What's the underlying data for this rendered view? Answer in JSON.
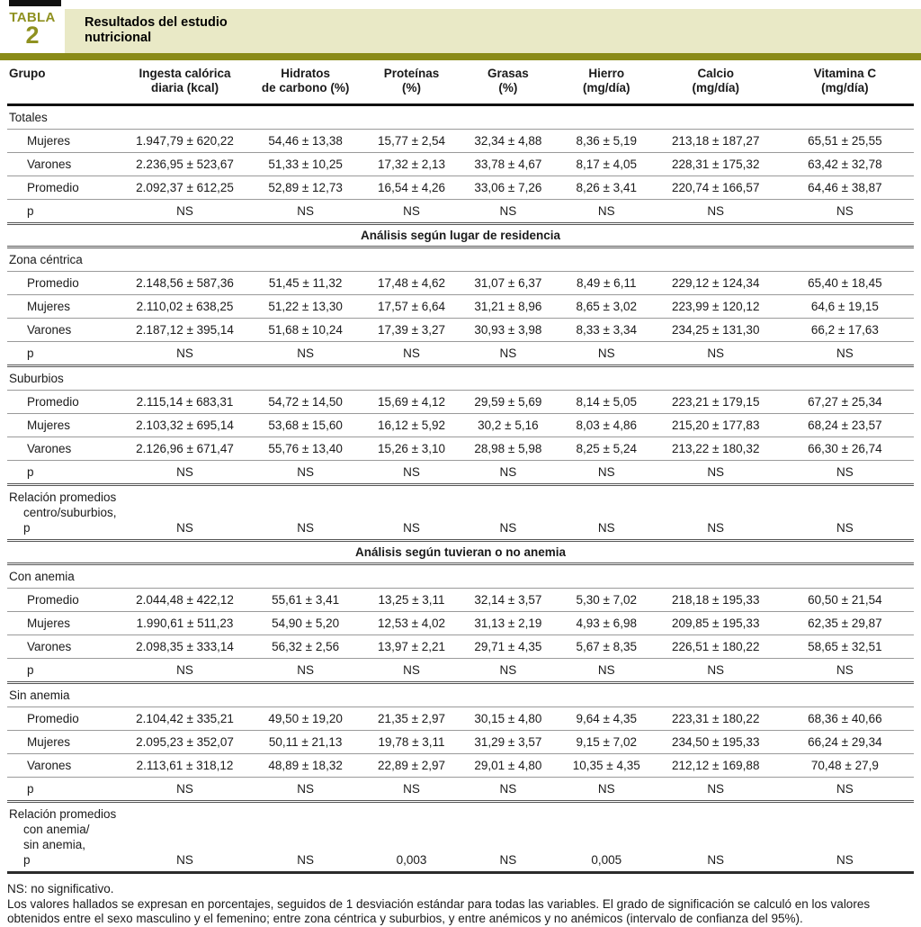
{
  "colors": {
    "olive": "#8a8b18",
    "olive-text": "#8f9120",
    "khaki": "#e9e9c6"
  },
  "header": {
    "tabla_label": "TABLA",
    "tabla_number": "2",
    "title_line1": "Resultados del estudio",
    "title_line2": "nutricional"
  },
  "table": {
    "columns": [
      {
        "lines": [
          "Grupo"
        ]
      },
      {
        "lines": [
          "Ingesta calórica",
          "diaria (kcal)"
        ]
      },
      {
        "lines": [
          "Hidratos",
          "de carbono (%)"
        ]
      },
      {
        "lines": [
          "Proteínas",
          "(%)"
        ]
      },
      {
        "lines": [
          "Grasas",
          "(%)"
        ]
      },
      {
        "lines": [
          "Hierro",
          "(mg/día)"
        ]
      },
      {
        "lines": [
          "Calcio",
          "(mg/día)"
        ]
      },
      {
        "lines": [
          "Vitamina C",
          "(mg/día)"
        ]
      }
    ],
    "rows": [
      {
        "type": "section",
        "label": "Totales"
      },
      {
        "type": "data",
        "label": "Mujeres",
        "values": [
          "1.947,79 ± 620,22",
          "54,46 ± 13,38",
          "15,77 ± 2,54",
          "32,34 ± 4,88",
          "8,36 ± 5,19",
          "213,18 ± 187,27",
          "65,51 ± 25,55"
        ]
      },
      {
        "type": "data",
        "label": "Varones",
        "values": [
          "2.236,95 ± 523,67",
          "51,33 ± 10,25",
          "17,32 ± 2,13",
          "33,78 ± 4,67",
          "8,17 ± 4,05",
          "228,31 ± 175,32",
          "63,42 ± 32,78"
        ]
      },
      {
        "type": "data",
        "label": "Promedio",
        "values": [
          "2.092,37 ± 612,25",
          "52,89 ± 12,73",
          "16,54 ± 4,26",
          "33,06 ± 7,26",
          "8,26 ± 3,41",
          "220,74 ± 166,57",
          "64,46 ± 38,87"
        ]
      },
      {
        "type": "data",
        "label": "p",
        "end": true,
        "values": [
          "NS",
          "NS",
          "NS",
          "NS",
          "NS",
          "NS",
          "NS"
        ]
      },
      {
        "type": "span",
        "label": "Análisis según lugar de residencia"
      },
      {
        "type": "section",
        "label": "Zona céntrica"
      },
      {
        "type": "data",
        "label": "Promedio",
        "values": [
          "2.148,56 ± 587,36",
          "51,45 ± 11,32",
          "17,48 ± 4,62",
          "31,07 ± 6,37",
          "8,49 ± 6,11",
          "229,12 ± 124,34",
          "65,40 ± 18,45"
        ]
      },
      {
        "type": "data",
        "label": "Mujeres",
        "values": [
          "2.110,02 ± 638,25",
          "51,22 ± 13,30",
          "17,57 ± 6,64",
          "31,21 ± 8,96",
          "8,65 ± 3,02",
          "223,99 ± 120,12",
          "64,6 ± 19,15"
        ]
      },
      {
        "type": "data",
        "label": "Varones",
        "values": [
          "2.187,12 ± 395,14",
          "51,68 ± 10,24",
          "17,39 ± 3,27",
          "30,93 ± 3,98",
          "8,33 ± 3,34",
          "234,25 ± 131,30",
          "66,2 ± 17,63"
        ]
      },
      {
        "type": "data",
        "label": "p",
        "end": true,
        "values": [
          "NS",
          "NS",
          "NS",
          "NS",
          "NS",
          "NS",
          "NS"
        ]
      },
      {
        "type": "section",
        "label": "Suburbios"
      },
      {
        "type": "data",
        "label": "Promedio",
        "values": [
          "2.115,14 ± 683,31",
          "54,72 ± 14,50",
          "15,69 ± 4,12",
          "29,59 ± 5,69",
          "8,14 ± 5,05",
          "223,21 ± 179,15",
          "67,27 ± 25,34"
        ]
      },
      {
        "type": "data",
        "label": "Mujeres",
        "values": [
          "2.103,32 ± 695,14",
          "53,68 ± 15,60",
          "16,12 ± 5,92",
          "30,2 ± 5,16",
          "8,03 ± 4,86",
          "215,20 ± 177,83",
          "68,24 ± 23,57"
        ]
      },
      {
        "type": "data",
        "label": "Varones",
        "values": [
          "2.126,96 ± 671,47",
          "55,76 ± 13,40",
          "15,26 ± 3,10",
          "28,98 ± 5,98",
          "8,25 ± 5,24",
          "213,22 ± 180,32",
          "66,30 ± 26,74"
        ]
      },
      {
        "type": "data",
        "label": "p",
        "end": true,
        "values": [
          "NS",
          "NS",
          "NS",
          "NS",
          "NS",
          "NS",
          "NS"
        ]
      },
      {
        "type": "multiline",
        "label_lines": [
          "Relación promedios",
          "centro/suburbios, p"
        ],
        "values": [
          "NS",
          "NS",
          "NS",
          "NS",
          "NS",
          "NS",
          "NS"
        ]
      },
      {
        "type": "span",
        "label": "Análisis según tuvieran o no anemia"
      },
      {
        "type": "section",
        "label": "Con anemia"
      },
      {
        "type": "data",
        "label": "Promedio",
        "values": [
          "2.044,48 ± 422,12",
          "55,61 ± 3,41",
          "13,25 ± 3,11",
          "32,14 ± 3,57",
          "5,30 ± 7,02",
          "218,18 ± 195,33",
          "60,50 ± 21,54"
        ]
      },
      {
        "type": "data",
        "label": "Mujeres",
        "values": [
          "1.990,61 ± 511,23",
          "54,90 ± 5,20",
          "12,53 ± 4,02",
          "31,13 ± 2,19",
          "4,93 ± 6,98",
          "209,85 ± 195,33",
          "62,35 ± 29,87"
        ]
      },
      {
        "type": "data",
        "label": "Varones",
        "values": [
          "2.098,35 ± 333,14",
          "56,32 ± 2,56",
          "13,97 ± 2,21",
          "29,71 ± 4,35",
          "5,67 ± 8,35",
          "226,51 ± 180,22",
          "58,65 ± 32,51"
        ]
      },
      {
        "type": "data",
        "label": "p",
        "end": true,
        "values": [
          "NS",
          "NS",
          "NS",
          "NS",
          "NS",
          "NS",
          "NS"
        ]
      },
      {
        "type": "section",
        "label": "Sin anemia"
      },
      {
        "type": "data",
        "label": "Promedio",
        "values": [
          "2.104,42 ± 335,21",
          "49,50 ± 19,20",
          "21,35 ± 2,97",
          "30,15 ± 4,80",
          "9,64 ± 4,35",
          "223,31 ± 180,22",
          "68,36 ± 40,66"
        ]
      },
      {
        "type": "data",
        "label": "Mujeres",
        "values": [
          "2.095,23 ± 352,07",
          "50,11 ± 21,13",
          "19,78 ± 3,11",
          "31,29 ± 3,57",
          "9,15 ± 7,02",
          "234,50 ± 195,33",
          "66,24 ± 29,34"
        ]
      },
      {
        "type": "data",
        "label": "Varones",
        "values": [
          "2.113,61 ± 318,12",
          "48,89 ± 18,32",
          "22,89 ± 2,97",
          "29,01 ± 4,80",
          "10,35 ± 4,35",
          "212,12 ± 169,88",
          "70,48 ± 27,9"
        ]
      },
      {
        "type": "data",
        "label": "p",
        "end": true,
        "values": [
          "NS",
          "NS",
          "NS",
          "NS",
          "NS",
          "NS",
          "NS"
        ]
      },
      {
        "type": "multiline",
        "final": true,
        "label_lines": [
          "Relación promedios",
          "con anemia/",
          "sin anemia,",
          "p"
        ],
        "values": [
          "NS",
          "NS",
          "0,003",
          "NS",
          "0,005",
          "NS",
          "NS"
        ]
      }
    ]
  },
  "footnotes": [
    "NS: no significativo.",
    "Los valores hallados se expresan en porcentajes, seguidos de 1 desviación estándar para todas las variables. El grado de significación se calculó en los valores obtenidos entre el sexo masculino y el femenino; entre zona céntrica y suburbios, y entre anémicos y no anémicos (intervalo de confianza del 95%)."
  ]
}
